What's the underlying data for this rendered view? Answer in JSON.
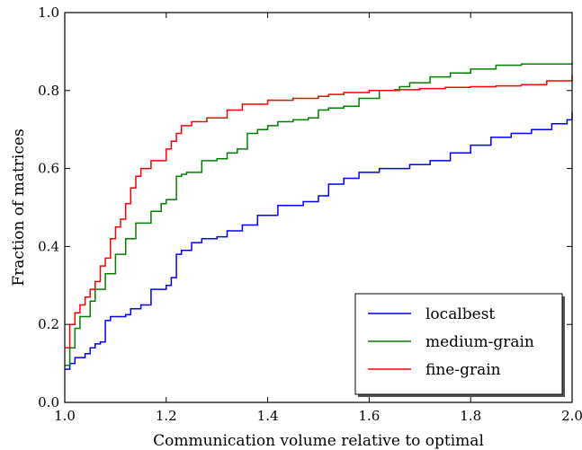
{
  "chart_data": {
    "type": "line",
    "title": "",
    "xlabel": "Communication volume relative to optimal",
    "ylabel": "Fraction of matrices",
    "xlim": [
      1.0,
      2.0
    ],
    "ylim": [
      0.0,
      1.0
    ],
    "xticks": [
      1.0,
      1.2,
      1.4,
      1.6,
      1.8,
      2.0
    ],
    "xtick_labels": [
      "1.0",
      "1.2",
      "1.4",
      "1.6",
      "1.8",
      "2.0"
    ],
    "yticks": [
      0.0,
      0.2,
      0.4,
      0.6,
      0.8,
      1.0
    ],
    "ytick_labels": [
      "0.0",
      "0.2",
      "0.4",
      "0.6",
      "0.8",
      "1.0"
    ],
    "grid": false,
    "legend_position": "bottom-right",
    "series": [
      {
        "name": "localbest",
        "color": "#0000ff",
        "x": [
          1.0,
          1.01,
          1.02,
          1.04,
          1.05,
          1.06,
          1.07,
          1.08,
          1.09,
          1.12,
          1.13,
          1.15,
          1.17,
          1.2,
          1.21,
          1.22,
          1.23,
          1.25,
          1.27,
          1.3,
          1.32,
          1.35,
          1.38,
          1.42,
          1.47,
          1.5,
          1.52,
          1.55,
          1.58,
          1.62,
          1.68,
          1.72,
          1.76,
          1.8,
          1.84,
          1.88,
          1.92,
          1.96,
          1.99,
          2.0
        ],
        "y": [
          0.085,
          0.1,
          0.115,
          0.125,
          0.14,
          0.15,
          0.155,
          0.21,
          0.22,
          0.225,
          0.24,
          0.25,
          0.29,
          0.3,
          0.32,
          0.38,
          0.39,
          0.41,
          0.42,
          0.425,
          0.44,
          0.455,
          0.48,
          0.505,
          0.515,
          0.53,
          0.56,
          0.575,
          0.59,
          0.6,
          0.61,
          0.62,
          0.64,
          0.66,
          0.68,
          0.69,
          0.7,
          0.715,
          0.725,
          0.745
        ]
      },
      {
        "name": "medium-grain",
        "color": "#008000",
        "x": [
          1.0,
          1.01,
          1.02,
          1.03,
          1.05,
          1.06,
          1.08,
          1.1,
          1.12,
          1.14,
          1.17,
          1.19,
          1.2,
          1.22,
          1.23,
          1.24,
          1.27,
          1.3,
          1.32,
          1.34,
          1.36,
          1.38,
          1.4,
          1.42,
          1.45,
          1.48,
          1.5,
          1.52,
          1.55,
          1.58,
          1.62,
          1.66,
          1.68,
          1.72,
          1.76,
          1.8,
          1.85,
          1.9,
          2.0
        ],
        "y": [
          0.095,
          0.14,
          0.19,
          0.22,
          0.26,
          0.29,
          0.33,
          0.38,
          0.42,
          0.46,
          0.49,
          0.51,
          0.52,
          0.58,
          0.585,
          0.59,
          0.62,
          0.625,
          0.64,
          0.65,
          0.69,
          0.7,
          0.71,
          0.72,
          0.725,
          0.73,
          0.75,
          0.755,
          0.76,
          0.78,
          0.8,
          0.81,
          0.82,
          0.835,
          0.845,
          0.855,
          0.865,
          0.868,
          0.872
        ]
      },
      {
        "name": "fine-grain",
        "color": "#ff0000",
        "x": [
          1.0,
          1.01,
          1.02,
          1.03,
          1.04,
          1.05,
          1.06,
          1.07,
          1.08,
          1.09,
          1.1,
          1.11,
          1.12,
          1.13,
          1.14,
          1.15,
          1.17,
          1.2,
          1.21,
          1.22,
          1.23,
          1.25,
          1.28,
          1.32,
          1.35,
          1.4,
          1.45,
          1.5,
          1.52,
          1.55,
          1.6,
          1.65,
          1.7,
          1.75,
          1.8,
          1.85,
          1.9,
          1.95,
          2.0
        ],
        "y": [
          0.14,
          0.2,
          0.23,
          0.25,
          0.27,
          0.29,
          0.31,
          0.35,
          0.37,
          0.42,
          0.45,
          0.47,
          0.51,
          0.55,
          0.58,
          0.6,
          0.62,
          0.65,
          0.67,
          0.69,
          0.71,
          0.72,
          0.73,
          0.75,
          0.765,
          0.775,
          0.78,
          0.785,
          0.79,
          0.795,
          0.8,
          0.802,
          0.805,
          0.808,
          0.81,
          0.812,
          0.815,
          0.825,
          0.84
        ]
      }
    ]
  }
}
